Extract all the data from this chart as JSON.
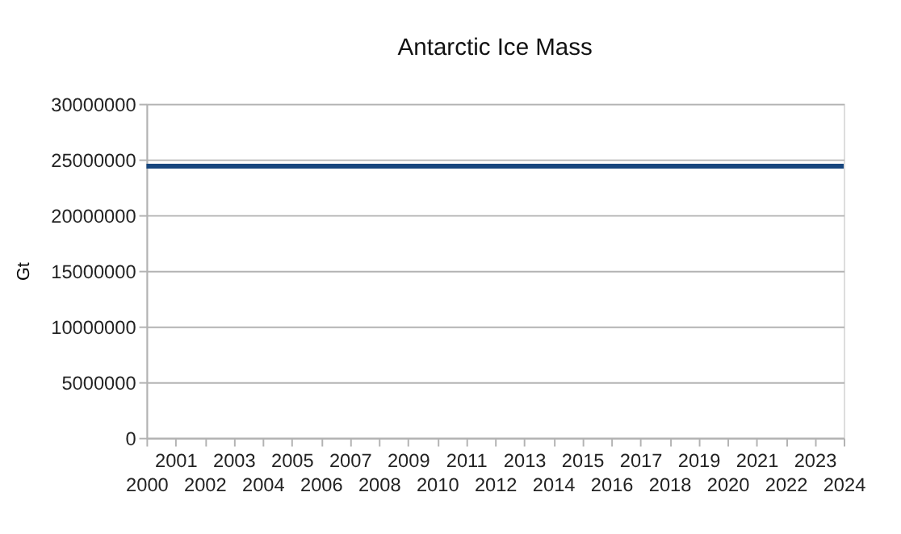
{
  "chart_data": {
    "type": "line",
    "title": "Antarctic Ice Mass",
    "ylabel": "Gt",
    "categories": [
      "2000",
      "2001",
      "2002",
      "2003",
      "2004",
      "2005",
      "2006",
      "2007",
      "2008",
      "2009",
      "2010",
      "2011",
      "2012",
      "2013",
      "2014",
      "2015",
      "2016",
      "2017",
      "2018",
      "2019",
      "2020",
      "2021",
      "2022",
      "2023",
      "2024"
    ],
    "series": [
      {
        "color": "#17467e",
        "values": [
          24400000,
          24400000,
          24400000,
          24400000,
          24400000,
          24400000,
          24400000,
          24400000,
          24400000,
          24400000,
          24400000,
          24400000,
          24400000,
          24400000,
          24400000,
          24400000,
          24400000,
          24400000,
          24400000,
          24400000,
          24400000,
          24400000,
          24400000,
          24400000,
          24400000
        ]
      }
    ],
    "ylim": [
      0,
      30000000
    ],
    "yticks": [
      0,
      5000000,
      10000000,
      15000000,
      20000000,
      25000000,
      30000000
    ],
    "grid": "y",
    "marker": "none",
    "line_style": "solid"
  }
}
